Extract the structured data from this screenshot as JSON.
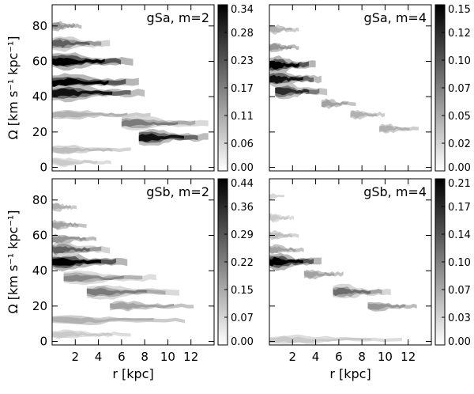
{
  "chart_data": [
    {
      "type": "heatmap",
      "label": "gSa, m=2",
      "xlabel": "",
      "ylabel": "Ω [km s⁻¹ kpc⁻¹]",
      "x_ticks": [],
      "y_ticks": [
        "0",
        "20",
        "40",
        "60",
        "80"
      ],
      "xlim": [
        0,
        14
      ],
      "ylim": [
        -2,
        92
      ],
      "colorbar_ticks": [
        "0.00",
        "0.06",
        "0.11",
        "0.17",
        "0.23",
        "0.28",
        "0.34"
      ],
      "colorbar_range": [
        0.0,
        0.34
      ],
      "features": [
        {
          "r_start": 0.0,
          "r_end": 7.0,
          "omega": 60,
          "intensity": 1.0
        },
        {
          "r_start": 0.0,
          "r_end": 7.5,
          "omega": 48,
          "intensity": 1.0
        },
        {
          "r_start": 0.0,
          "r_end": 8.0,
          "omega": 42,
          "intensity": 0.9
        },
        {
          "r_start": 0.0,
          "r_end": 5.0,
          "omega": 70,
          "intensity": 0.6
        },
        {
          "r_start": 0.0,
          "r_end": 3.0,
          "omega": 80,
          "intensity": 0.4
        },
        {
          "r_start": 7.5,
          "r_end": 13.5,
          "omega": 17,
          "intensity": 0.9
        },
        {
          "r_start": 6.0,
          "r_end": 13.5,
          "omega": 25,
          "intensity": 0.5
        },
        {
          "r_start": 0.0,
          "r_end": 10.0,
          "omega": 30,
          "intensity": 0.3
        },
        {
          "r_start": 0.0,
          "r_end": 8.0,
          "omega": 10,
          "intensity": 0.25
        },
        {
          "r_start": 0.0,
          "r_end": 6.0,
          "omega": 3,
          "intensity": 0.2
        }
      ]
    },
    {
      "type": "heatmap",
      "label": "gSa, m=4",
      "xlabel": "",
      "ylabel": "",
      "x_ticks": [],
      "y_ticks": [],
      "xlim": [
        0,
        14
      ],
      "ylim": [
        -2,
        92
      ],
      "colorbar_ticks": [
        "0.00",
        "0.02",
        "0.05",
        "0.07",
        "0.10",
        "0.12",
        "0.15"
      ],
      "colorbar_range": [
        0.0,
        0.15
      ],
      "features": [
        {
          "r_start": 0.0,
          "r_end": 4.0,
          "omega": 58,
          "intensity": 1.0
        },
        {
          "r_start": 0.0,
          "r_end": 4.5,
          "omega": 50,
          "intensity": 0.9
        },
        {
          "r_start": 0.5,
          "r_end": 5.0,
          "omega": 43,
          "intensity": 0.8
        },
        {
          "r_start": 0.0,
          "r_end": 3.0,
          "omega": 68,
          "intensity": 0.4
        },
        {
          "r_start": 0.0,
          "r_end": 3.0,
          "omega": 78,
          "intensity": 0.3
        },
        {
          "r_start": 4.5,
          "r_end": 8.0,
          "omega": 36,
          "intensity": 0.35
        },
        {
          "r_start": 7.0,
          "r_end": 10.5,
          "omega": 30,
          "intensity": 0.3
        },
        {
          "r_start": 9.5,
          "r_end": 13.5,
          "omega": 22,
          "intensity": 0.3
        }
      ]
    },
    {
      "type": "heatmap",
      "label": "gSb, m=2",
      "xlabel": "r [kpc]",
      "ylabel": "Ω [km s⁻¹ kpc⁻¹]",
      "x_ticks": [
        "2",
        "4",
        "6",
        "8",
        "10",
        "12"
      ],
      "y_ticks": [
        "0",
        "20",
        "40",
        "60",
        "80"
      ],
      "xlim": [
        0,
        14
      ],
      "ylim": [
        -2,
        92
      ],
      "colorbar_ticks": [
        "0.00",
        "0.07",
        "0.15",
        "0.22",
        "0.29",
        "0.36",
        "0.44"
      ],
      "colorbar_range": [
        0.0,
        0.44
      ],
      "features": [
        {
          "r_start": 0.0,
          "r_end": 6.5,
          "omega": 45,
          "intensity": 1.0
        },
        {
          "r_start": 0.0,
          "r_end": 5.0,
          "omega": 52,
          "intensity": 0.6
        },
        {
          "r_start": 0.0,
          "r_end": 4.5,
          "omega": 58,
          "intensity": 0.4
        },
        {
          "r_start": 0.0,
          "r_end": 3.5,
          "omega": 66,
          "intensity": 0.35
        },
        {
          "r_start": 0.0,
          "r_end": 2.5,
          "omega": 76,
          "intensity": 0.3
        },
        {
          "r_start": 1.0,
          "r_end": 9.0,
          "omega": 36,
          "intensity": 0.45
        },
        {
          "r_start": 3.0,
          "r_end": 11.0,
          "omega": 28,
          "intensity": 0.5
        },
        {
          "r_start": 5.0,
          "r_end": 13.5,
          "omega": 20,
          "intensity": 0.35
        },
        {
          "r_start": 0.0,
          "r_end": 13.5,
          "omega": 12,
          "intensity": 0.3
        },
        {
          "r_start": 0.0,
          "r_end": 8.0,
          "omega": 4,
          "intensity": 0.2
        }
      ]
    },
    {
      "type": "heatmap",
      "label": "gSb, m=4",
      "xlabel": "r [kpc]",
      "ylabel": "",
      "x_ticks": [
        "2",
        "4",
        "6",
        "8",
        "10",
        "12"
      ],
      "y_ticks": [],
      "xlim": [
        0,
        14
      ],
      "ylim": [
        -2,
        92
      ],
      "colorbar_ticks": [
        "0.00",
        "0.03",
        "0.07",
        "0.10",
        "0.14",
        "0.17",
        "0.21"
      ],
      "colorbar_range": [
        0.0,
        0.21
      ],
      "features": [
        {
          "r_start": 0.0,
          "r_end": 4.5,
          "omega": 45,
          "intensity": 1.0
        },
        {
          "r_start": 0.0,
          "r_end": 3.5,
          "omega": 52,
          "intensity": 0.35
        },
        {
          "r_start": 0.0,
          "r_end": 3.0,
          "omega": 60,
          "intensity": 0.25
        },
        {
          "r_start": 0.0,
          "r_end": 2.5,
          "omega": 70,
          "intensity": 0.2
        },
        {
          "r_start": 0.0,
          "r_end": 2.0,
          "omega": 82,
          "intensity": 0.15
        },
        {
          "r_start": 3.0,
          "r_end": 7.0,
          "omega": 38,
          "intensity": 0.35
        },
        {
          "r_start": 5.5,
          "r_end": 10.5,
          "omega": 28,
          "intensity": 0.55
        },
        {
          "r_start": 8.5,
          "r_end": 13.5,
          "omega": 20,
          "intensity": 0.4
        },
        {
          "r_start": 0.0,
          "r_end": 13.5,
          "omega": 1,
          "intensity": 0.2
        }
      ]
    }
  ]
}
